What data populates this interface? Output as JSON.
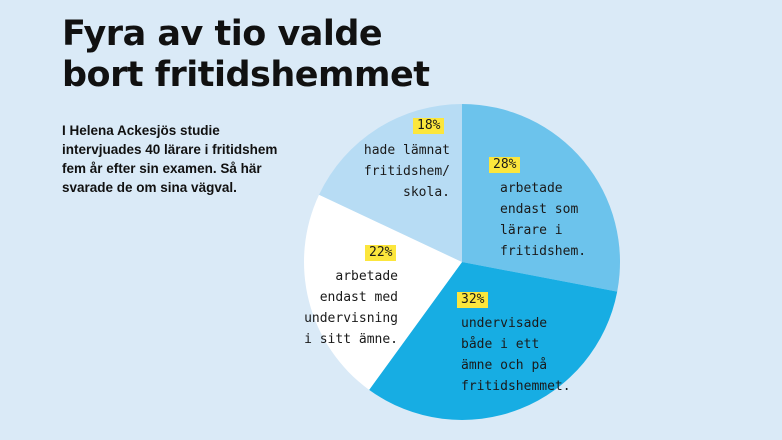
{
  "title_lines": [
    "Fyra av tio valde",
    "bort fritidshemmet"
  ],
  "intro_lines": [
    "I Helena Ackesjös studie",
    "intervjuades 40 lärare i fritidshem",
    "fem år efter sin examen. Så här",
    "svarade de om sina vägval."
  ],
  "chart_data": {
    "type": "pie",
    "title": "Fyra av tio valde bort fritidshemmet",
    "start": "12 o'clock",
    "direction": "clockwise",
    "slices": [
      {
        "value": 28,
        "pct_label": "28%",
        "label_lines": [
          "arbetade",
          "endast som",
          "lärare i",
          "fritidshem."
        ],
        "color": "#6cc3ec"
      },
      {
        "value": 32,
        "pct_label": "32%",
        "label_lines": [
          "undervisade",
          "både i ett",
          "ämne och på",
          "fritidshemmet."
        ],
        "color": "#17ade3"
      },
      {
        "value": 22,
        "pct_label": "22%",
        "label_lines": [
          "arbetade",
          "endast med",
          "undervisning",
          "i sitt ämne."
        ],
        "color": "#ffffff"
      },
      {
        "value": 18,
        "pct_label": "18%",
        "label_lines": [
          "hade lämnat",
          "fritidshem/",
          "skola."
        ],
        "color": "#b7dcf4"
      }
    ]
  }
}
